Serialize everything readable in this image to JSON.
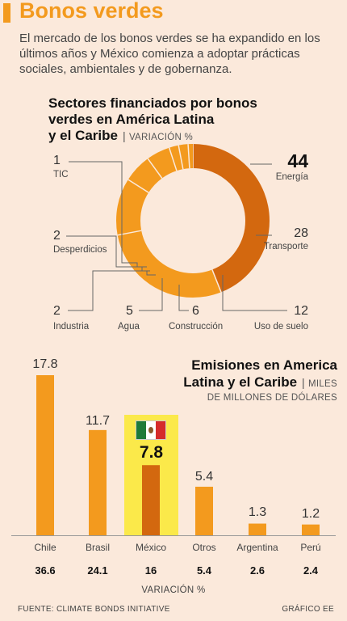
{
  "header": {
    "title": "Bonos verdes",
    "intro": "El mercado de los bonos verdes se ha expandido en los últimos años y México comienza a adoptar prácticas sociales, ambientales y de gobernanza."
  },
  "donut_section": {
    "title_line1": "Sectores financiados por bonos",
    "title_line2": "verdes en América Latina",
    "title_line3": "y el Caribe",
    "subtitle": "VARIACIÓN %"
  },
  "bar_section": {
    "title_line1": "Emisiones en America",
    "title_line2": "Latina y el Caribe",
    "subtitle_a": "MILES",
    "subtitle_b": "DE MILLONES DE DÓLARES",
    "variation_label": "VARIACIÓN %"
  },
  "footer": {
    "source": "FUENTE: CLIMATE BONDS INITIATIVE",
    "credit": "GRÁFICO EE"
  },
  "colors": {
    "accent": "#f39a1e",
    "dark_orange": "#d3680f",
    "highlight": "#fbe94a",
    "background": "#fbe9db"
  },
  "chart_data": [
    {
      "type": "pie",
      "title": "Sectores financiados por bonos verdes en América Latina y el Caribe",
      "subtitle": "VARIACIÓN %",
      "donut": true,
      "categories": [
        "Energía",
        "Transporte",
        "Uso de suelo",
        "Construcción",
        "Agua",
        "Industria",
        "Desperdicios",
        "TIC"
      ],
      "values": [
        44,
        28,
        12,
        6,
        5,
        2,
        2,
        1
      ],
      "labels": [
        "44",
        "28",
        "12",
        "6",
        "5",
        "2",
        "2",
        "1"
      ]
    },
    {
      "type": "bar",
      "title": "Emisiones en America Latina y el Caribe",
      "subtitle": "MILES DE MILLONES DE DÓLARES",
      "categories": [
        "Chile",
        "Brasil",
        "México",
        "Otros",
        "Argentina",
        "Perú"
      ],
      "values": [
        17.8,
        11.7,
        7.8,
        5.4,
        1.3,
        1.2
      ],
      "value_labels": [
        "17.8",
        "11.7",
        "7.8",
        "5.4",
        "1.3",
        "1.2"
      ],
      "variation": [
        "36.6",
        "24.1",
        "16",
        "5.4",
        "2.6",
        "2.4"
      ],
      "highlight": "México",
      "ylim": [
        0,
        17.8
      ]
    }
  ]
}
